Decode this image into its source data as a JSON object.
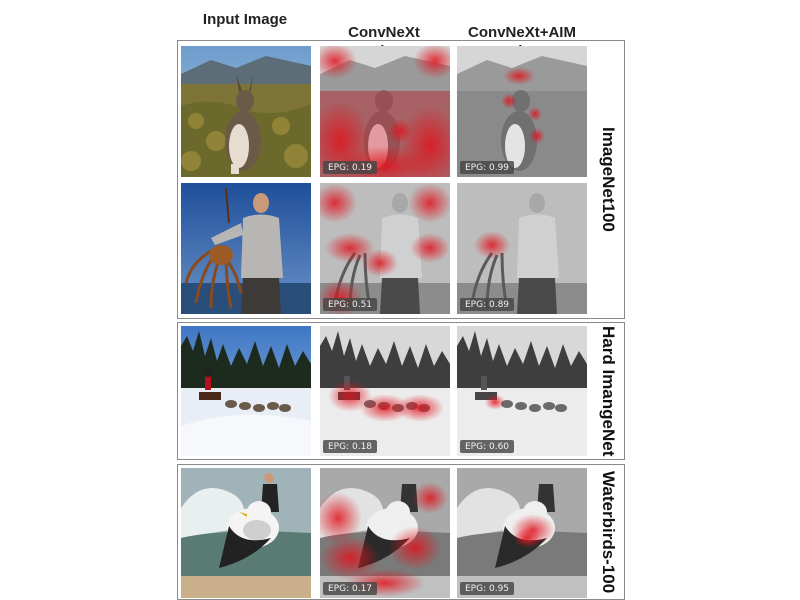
{
  "columns": [
    "Input Image",
    "ConvNeXt\nGradCAM",
    "ConvNeXt+AIM\nGradCAM"
  ],
  "groups": [
    {
      "label": "ImageNet100",
      "rows": [
        {
          "subject": "wallaby",
          "epg_convnext": "EPG: 0.19",
          "epg_aim": "EPG: 0.99"
        },
        {
          "subject": "man holding lobster",
          "epg_convnext": "EPG: 0.51",
          "epg_aim": "EPG: 0.89"
        }
      ]
    },
    {
      "label": "Hard ImangeNet",
      "rows": [
        {
          "subject": "dog sled",
          "epg_convnext": "EPG: 0.18",
          "epg_aim": "EPG: 0.60"
        }
      ]
    },
    {
      "label": "Waterbirds-100",
      "rows": [
        {
          "subject": "seabird with kitesurfer",
          "epg_convnext": "EPG: 0.17",
          "epg_aim": "EPG: 0.95"
        }
      ]
    }
  ],
  "colors": {
    "heatmap": "#e0141e",
    "border": "#8a8a8a",
    "label_bg": "#464646"
  }
}
